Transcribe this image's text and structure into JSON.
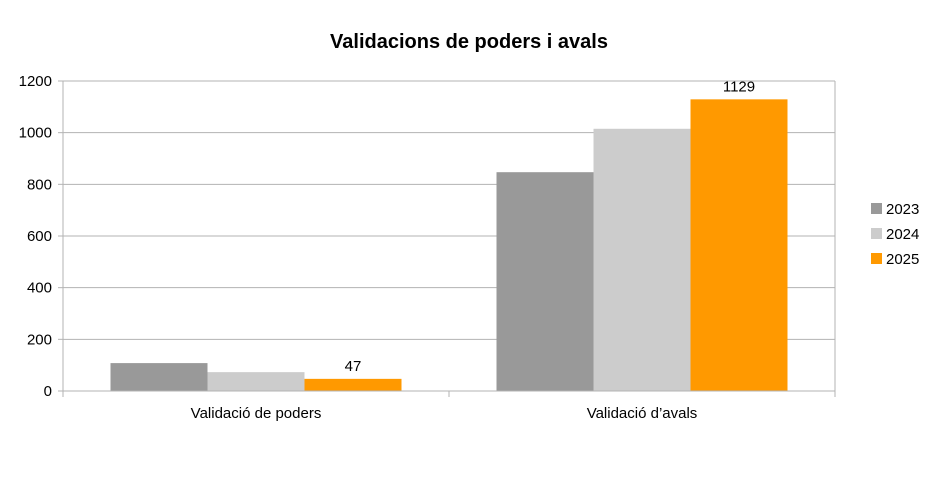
{
  "chart_data": {
    "type": "bar",
    "title": "Validacions de poders i avals",
    "xlabel": "",
    "ylabel": "",
    "categories": [
      "Validació de poders",
      "Validació d’avals"
    ],
    "series": [
      {
        "name": "2023",
        "color": "#999999",
        "values": [
          108,
          847
        ],
        "labels": [
          null,
          null
        ]
      },
      {
        "name": "2024",
        "color": "#cccccc",
        "values": [
          73,
          1015
        ],
        "labels": [
          null,
          null
        ]
      },
      {
        "name": "2025",
        "color": "#ff9900",
        "values": [
          47,
          1129
        ],
        "labels": [
          "47",
          "1129"
        ]
      }
    ],
    "ylim": [
      0,
      1200
    ],
    "yticks": [
      0,
      200,
      400,
      600,
      800,
      1000,
      1200
    ],
    "grid": true,
    "legend": "right"
  }
}
